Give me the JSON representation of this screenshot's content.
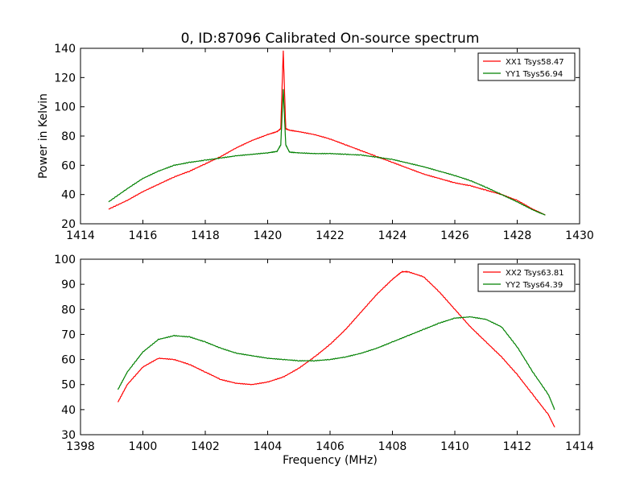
{
  "title": "0, ID:87096 Calibrated On-source spectrum",
  "chart_data": [
    {
      "type": "line",
      "title": "0, ID:87096 Calibrated On-source spectrum",
      "xlabel": "",
      "ylabel": "Power in Kelvin",
      "xlim": [
        1414,
        1430
      ],
      "ylim": [
        20,
        140
      ],
      "xticks": [
        "1414",
        "1416",
        "1418",
        "1420",
        "1422",
        "1424",
        "1426",
        "1428",
        "1430"
      ],
      "yticks": [
        "20",
        "40",
        "60",
        "80",
        "100",
        "120",
        "140"
      ],
      "grid": false,
      "legend_position": "top-right",
      "series": [
        {
          "name": "XX1 Tsys58.47",
          "color": "#ff0000",
          "x": [
            1414.9,
            1415.5,
            1416.0,
            1416.5,
            1417.0,
            1417.5,
            1418.0,
            1418.5,
            1419.0,
            1419.5,
            1420.0,
            1420.3,
            1420.42,
            1420.5,
            1420.58,
            1420.7,
            1421.0,
            1421.5,
            1422.0,
            1422.5,
            1423.0,
            1423.5,
            1424.0,
            1424.5,
            1425.0,
            1425.5,
            1426.0,
            1426.5,
            1427.0,
            1427.5,
            1428.0,
            1428.5,
            1428.9
          ],
          "y": [
            30,
            36,
            42,
            47,
            52,
            56,
            61,
            66,
            72,
            77,
            81,
            83,
            85,
            138,
            85,
            84,
            83,
            81,
            78,
            74,
            70,
            66,
            62,
            58,
            54,
            51,
            48,
            46,
            43,
            40,
            36,
            30,
            26
          ]
        },
        {
          "name": "YY1 Tsys56.94",
          "color": "#008000",
          "x": [
            1414.9,
            1415.5,
            1416.0,
            1416.5,
            1417.0,
            1417.5,
            1418.0,
            1418.5,
            1419.0,
            1419.5,
            1420.0,
            1420.3,
            1420.42,
            1420.5,
            1420.58,
            1420.7,
            1421.0,
            1421.5,
            1422.0,
            1422.5,
            1423.0,
            1423.5,
            1424.0,
            1424.5,
            1425.0,
            1425.5,
            1426.0,
            1426.5,
            1427.0,
            1427.5,
            1428.0,
            1428.5,
            1428.9
          ],
          "y": [
            35,
            44,
            51,
            56,
            60,
            62,
            63.5,
            65,
            66.5,
            67.5,
            68.5,
            69.5,
            74,
            112,
            74,
            69,
            68.5,
            68,
            68,
            67.5,
            67,
            65.5,
            64,
            61.5,
            59,
            56,
            53,
            49.5,
            45,
            40,
            35,
            29.5,
            26
          ]
        }
      ]
    },
    {
      "type": "line",
      "title": "",
      "xlabel": "Frequency (MHz)",
      "ylabel": "",
      "xlim": [
        1398,
        1414
      ],
      "ylim": [
        30,
        100
      ],
      "xticks": [
        "1398",
        "1400",
        "1402",
        "1404",
        "1406",
        "1408",
        "1410",
        "1412",
        "1414"
      ],
      "yticks": [
        "30",
        "40",
        "50",
        "60",
        "70",
        "80",
        "90",
        "100"
      ],
      "grid": false,
      "legend_position": "top-right",
      "series": [
        {
          "name": "XX2 Tsys63.81",
          "color": "#ff0000",
          "x": [
            1399.2,
            1399.5,
            1400.0,
            1400.5,
            1401.0,
            1401.5,
            1402.0,
            1402.5,
            1403.0,
            1403.5,
            1404.0,
            1404.5,
            1405.0,
            1405.5,
            1406.0,
            1406.5,
            1407.0,
            1407.5,
            1408.0,
            1408.3,
            1408.5,
            1409.0,
            1409.5,
            1410.0,
            1410.5,
            1411.0,
            1411.5,
            1412.0,
            1412.5,
            1413.0,
            1413.2
          ],
          "y": [
            43,
            50,
            57,
            60.5,
            60,
            58,
            55,
            52,
            50.5,
            50,
            51,
            53,
            56.5,
            61,
            66,
            72,
            79,
            86,
            92,
            95,
            95,
            93,
            87,
            80,
            73,
            67,
            61,
            54,
            46,
            38,
            33
          ]
        },
        {
          "name": "YY2 Tsys64.39",
          "color": "#008000",
          "x": [
            1399.2,
            1399.5,
            1400.0,
            1400.5,
            1401.0,
            1401.5,
            1402.0,
            1402.5,
            1403.0,
            1403.5,
            1404.0,
            1404.5,
            1405.0,
            1405.5,
            1406.0,
            1406.5,
            1407.0,
            1407.5,
            1408.0,
            1408.5,
            1409.0,
            1409.5,
            1410.0,
            1410.5,
            1411.0,
            1411.5,
            1412.0,
            1412.5,
            1413.0,
            1413.2
          ],
          "y": [
            48,
            55,
            63,
            68,
            69.5,
            69,
            67,
            64.5,
            62.5,
            61.5,
            60.5,
            60,
            59.5,
            59.5,
            60,
            61,
            62.5,
            64.5,
            67,
            69.5,
            72,
            74.5,
            76.5,
            77,
            76,
            73,
            65,
            55,
            46,
            40
          ]
        }
      ]
    }
  ]
}
